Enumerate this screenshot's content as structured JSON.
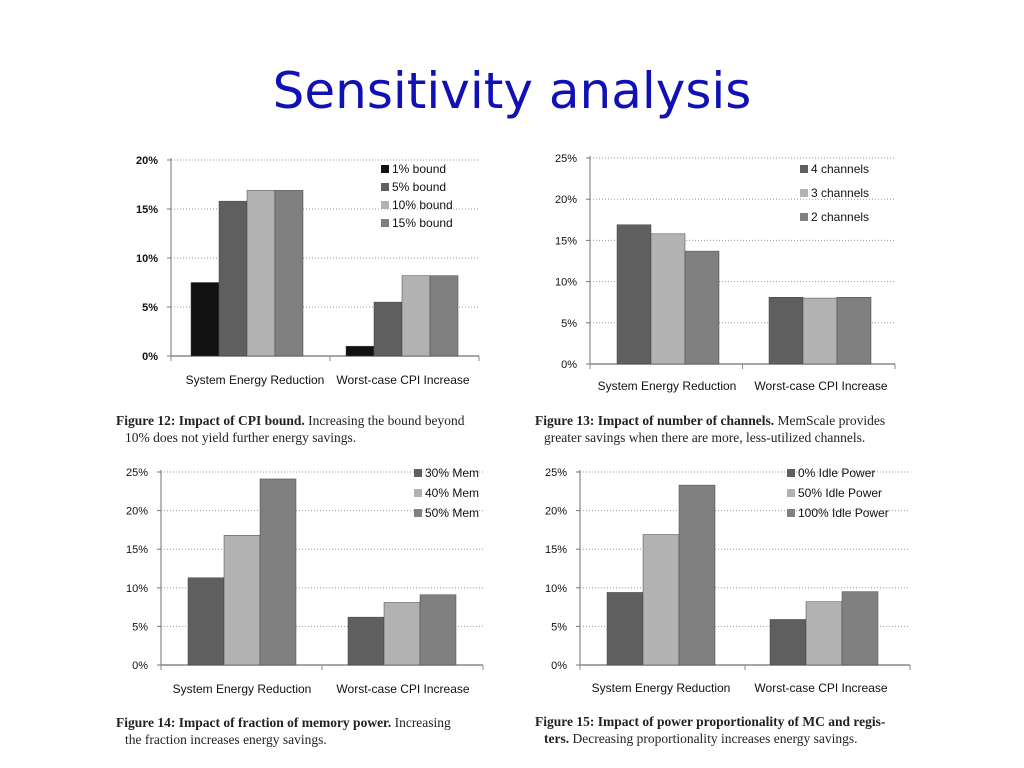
{
  "slide": {
    "title": "Sensitivity analysis"
  },
  "colors": {
    "title": "#1010b4",
    "series": [
      "#111111",
      "#5f5f5f",
      "#b2b2b2",
      "#808080"
    ]
  },
  "chart_data": [
    {
      "type": "bar",
      "categories": [
        "System Energy Reduction",
        "Worst-case CPI Increase"
      ],
      "series": [
        {
          "name": "1% bound",
          "values": [
            7.5,
            1.0
          ]
        },
        {
          "name": "5% bound",
          "values": [
            15.8,
            5.5
          ]
        },
        {
          "name": "10% bound",
          "values": [
            16.9,
            8.2
          ]
        },
        {
          "name": "15% bound",
          "values": [
            16.9,
            8.2
          ]
        }
      ],
      "yticks": [
        "0%",
        "5%",
        "10%",
        "15%",
        "20%"
      ],
      "ylim": [
        0,
        20
      ],
      "grid": true,
      "legend": "top-right",
      "bold_ticks": true,
      "caption": {
        "lead": "Figure 12: Impact of CPI bound.",
        "text": "Increasing the bound beyond",
        "line2": "10% does not yield further energy savings."
      }
    },
    {
      "type": "bar",
      "categories": [
        "System Energy Reduction",
        "Worst-case CPI Increase"
      ],
      "series": [
        {
          "name": "4 channels",
          "values": [
            16.9,
            8.1
          ]
        },
        {
          "name": "3 channels",
          "values": [
            15.8,
            8.0
          ]
        },
        {
          "name": "2 channels",
          "values": [
            13.7,
            8.1
          ]
        }
      ],
      "yticks": [
        "0%",
        "5%",
        "10%",
        "15%",
        "20%",
        "25%"
      ],
      "ylim": [
        0,
        25
      ],
      "grid": true,
      "legend": "top-right",
      "bold_ticks": false,
      "caption": {
        "lead": "Figure 13: Impact of number of channels.",
        "text": "MemScale provides",
        "line2": "greater savings when there are more, less-utilized channels."
      }
    },
    {
      "type": "bar",
      "categories": [
        "System Energy Reduction",
        "Worst-case CPI Increase"
      ],
      "series": [
        {
          "name": "30% Mem",
          "values": [
            11.3,
            6.2
          ]
        },
        {
          "name": "40% Mem",
          "values": [
            16.8,
            8.1
          ]
        },
        {
          "name": "50% Mem",
          "values": [
            24.1,
            9.1
          ]
        }
      ],
      "yticks": [
        "0%",
        "5%",
        "10%",
        "15%",
        "20%",
        "25%"
      ],
      "ylim": [
        0,
        25
      ],
      "grid": true,
      "legend": "top-right",
      "bold_ticks": false,
      "caption": {
        "lead": "Figure 14: Impact of fraction of memory power.",
        "text": "Increasing",
        "line2": "the fraction increases energy savings."
      }
    },
    {
      "type": "bar",
      "categories": [
        "System Energy Reduction",
        "Worst-case CPI Increase"
      ],
      "series": [
        {
          "name": "0% Idle Power",
          "values": [
            9.4,
            5.9
          ]
        },
        {
          "name": "50% Idle Power",
          "values": [
            16.9,
            8.2
          ]
        },
        {
          "name": "100% Idle Power",
          "values": [
            23.3,
            9.5
          ]
        }
      ],
      "yticks": [
        "0%",
        "5%",
        "10%",
        "15%",
        "20%",
        "25%"
      ],
      "ylim": [
        0,
        25
      ],
      "grid": true,
      "legend": "top-right",
      "bold_ticks": false,
      "caption": {
        "lead": "Figure 15: Impact of power proportionality of MC and regis-",
        "text": "",
        "line2_lead": "ters.",
        "line2": "Decreasing proportionality increases energy savings."
      }
    }
  ]
}
